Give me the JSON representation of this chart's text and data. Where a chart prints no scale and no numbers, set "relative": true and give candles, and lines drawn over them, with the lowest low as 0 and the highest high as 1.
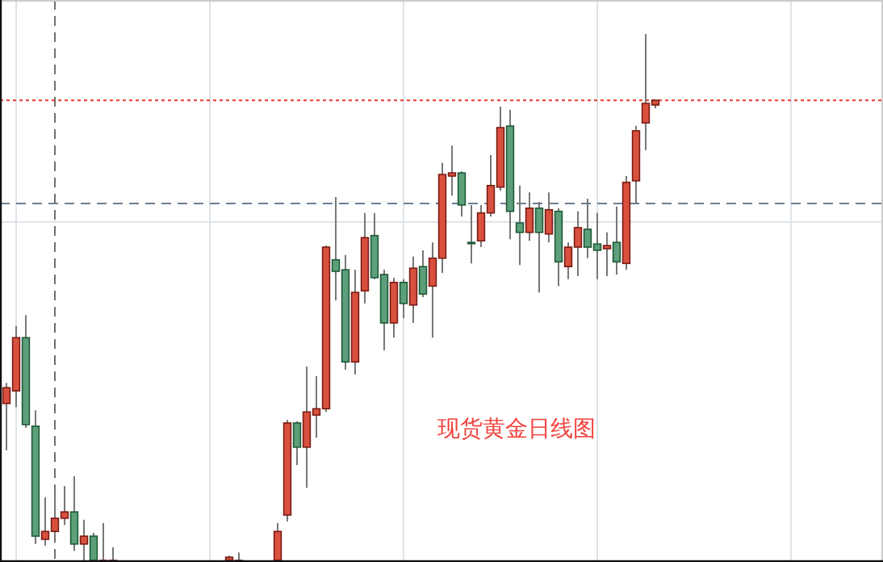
{
  "chart_data": {
    "type": "candlestick",
    "relative": true,
    "grid": true,
    "categories": [
      null,
      null,
      null,
      null,
      null,
      null,
      null,
      null,
      null,
      null,
      null,
      null,
      null,
      null,
      null,
      null,
      null,
      null,
      null,
      null,
      null,
      null,
      null,
      null,
      null,
      null,
      null,
      null,
      null,
      null,
      null,
      null,
      null,
      null,
      null,
      null,
      null,
      null,
      null,
      null,
      null,
      null,
      null,
      null,
      null,
      null,
      null,
      null,
      null,
      null,
      null,
      null,
      null,
      null,
      null,
      null,
      null,
      null,
      null,
      null,
      null,
      null,
      null,
      null,
      null,
      null,
      null,
      null
    ],
    "ohlc": [
      [
        0.298,
        0.337,
        0.209,
        0.328
      ],
      [
        0.322,
        0.445,
        0.291,
        0.423
      ],
      [
        0.423,
        0.466,
        0.252,
        0.258
      ],
      [
        0.255,
        0.285,
        0.031,
        0.046
      ],
      [
        0.04,
        0.12,
        0.028,
        0.055
      ],
      [
        0.055,
        0.132,
        0.046,
        0.08
      ],
      [
        0.08,
        0.141,
        0.067,
        0.092
      ],
      [
        0.092,
        0.16,
        0.018,
        0.031
      ],
      [
        0.031,
        0.077,
        0,
        0.046
      ],
      [
        0.046,
        0.052,
        0,
        0
      ],
      [
        0,
        0.071,
        0,
        0
      ],
      [
        0,
        0.025,
        0,
        0
      ],
      null,
      null,
      null,
      null,
      null,
      null,
      null,
      null,
      null,
      null,
      null,
      [
        0,
        0.009,
        0,
        0.006
      ],
      [
        0,
        0.015,
        0,
        0
      ],
      null,
      null,
      null,
      [
        0,
        0.071,
        0,
        0.055
      ],
      [
        0.086,
        0.267,
        0.074,
        0.261
      ],
      [
        0.261,
        0.264,
        0.181,
        0.215
      ],
      [
        0.215,
        0.368,
        0.138,
        0.282
      ],
      [
        0.276,
        0.35,
        0.233,
        0.288
      ],
      [
        0.288,
        0.598,
        0.282,
        0.595
      ],
      [
        0.571,
        0.69,
        0.494,
        0.549
      ],
      [
        0.552,
        0.58,
        0.362,
        0.377
      ],
      [
        0.377,
        0.552,
        0.353,
        0.509
      ],
      [
        0.512,
        0.66,
        0.488,
        0.613
      ],
      [
        0.617,
        0.66,
        0.534,
        0.537
      ],
      [
        0.543,
        0.552,
        0.399,
        0.451
      ],
      [
        0.451,
        0.537,
        0.423,
        0.528
      ],
      [
        0.528,
        0.534,
        0.46,
        0.488
      ],
      [
        0.485,
        0.577,
        0.451,
        0.555
      ],
      [
        0.558,
        0.589,
        0.5,
        0.506
      ],
      [
        0.521,
        0.604,
        0.423,
        0.574
      ],
      [
        0.574,
        0.755,
        0.546,
        0.733
      ],
      [
        0.73,
        0.788,
        0.693,
        0.736
      ],
      [
        0.736,
        0.739,
        0.653,
        0.675
      ],
      [
        0.604,
        0.675,
        0.564,
        0.602
      ],
      [
        0.607,
        0.675,
        0.595,
        0.66
      ],
      [
        0.66,
        0.77,
        0.653,
        0.712
      ],
      [
        0.709,
        0.862,
        0.702,
        0.822
      ],
      [
        0.825,
        0.856,
        0.61,
        0.663
      ],
      [
        0.641,
        0.712,
        0.561,
        0.623
      ],
      [
        0.623,
        0.699,
        0.607,
        0.669
      ],
      [
        0.669,
        0.681,
        0.509,
        0.623
      ],
      [
        0.62,
        0.699,
        0.604,
        0.666
      ],
      [
        0.663,
        0.669,
        0.521,
        0.567
      ],
      [
        0.558,
        0.604,
        0.534,
        0.595
      ],
      [
        0.595,
        0.663,
        0.54,
        0.632
      ],
      [
        0.629,
        0.687,
        0.574,
        0.595
      ],
      [
        0.601,
        0.66,
        0.534,
        0.589
      ],
      [
        0.592,
        0.623,
        0.54,
        0.598
      ],
      [
        0.604,
        0.672,
        0.543,
        0.567
      ],
      [
        0.564,
        0.73,
        0.552,
        0.718
      ],
      [
        0.721,
        0.825,
        0.678,
        0.816
      ],
      [
        0.831,
        1,
        0.779,
        0.868
      ],
      [
        0.865,
        0.874,
        0.859,
        0.874
      ]
    ],
    "ref_lines": [
      {
        "axis": "y",
        "value": 0.874,
        "color": "#e8382d",
        "line_style": "dotted"
      },
      {
        "axis": "y",
        "value": 0.678,
        "color": "#6a7f94",
        "line_style": "dashed"
      }
    ],
    "annotations": [
      "现货黄金日线图"
    ]
  }
}
